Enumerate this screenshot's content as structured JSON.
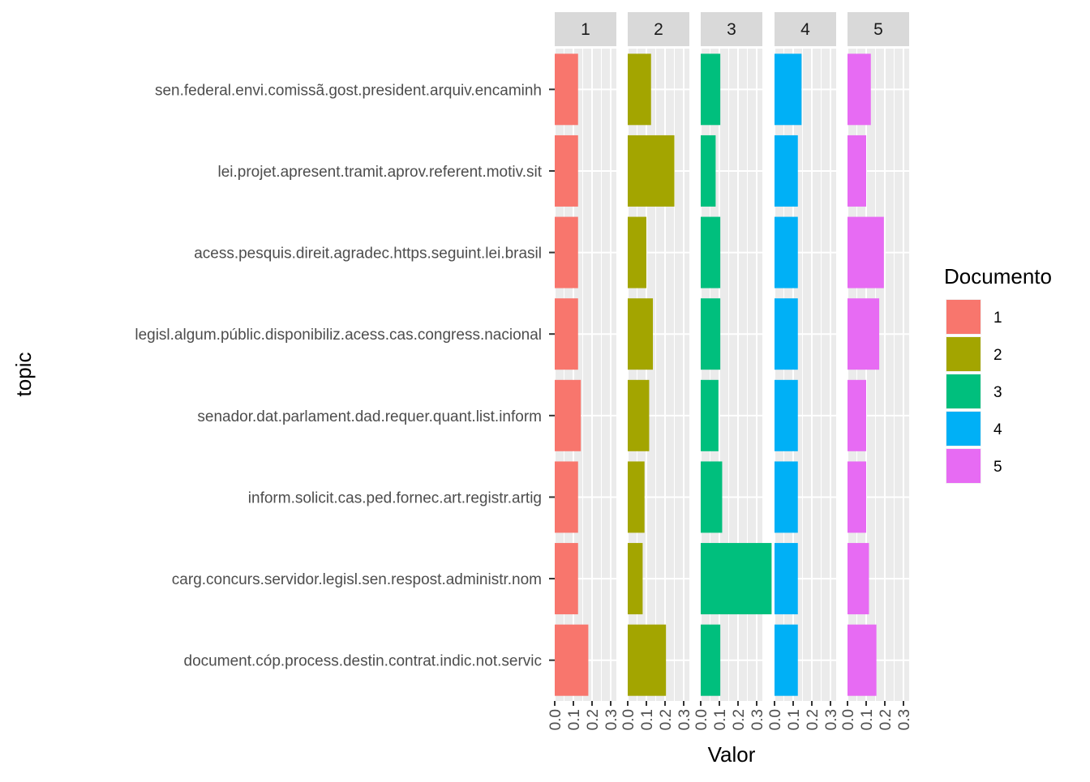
{
  "chart_data": {
    "type": "bar",
    "orientation": "horizontal",
    "faceted": true,
    "facet_labels": [
      "1",
      "2",
      "3",
      "4",
      "5"
    ],
    "categories": [
      "sen.federal.envi.comissã.gost.president.arquiv.encaminh",
      "lei.projet.apresent.tramit.aprov.referent.motiv.sit",
      "acess.pesquis.direit.agradec.https.seguint.lei.brasil",
      "legisl.algum.públic.disponibiliz.acess.cas.congress.nacional",
      "senador.dat.parlament.dad.requer.quant.list.inform",
      "inform.solicit.cas.ped.fornec.art.registr.artig",
      "carg.concurs.servidor.legisl.sen.respost.administr.nom",
      "document.cóp.process.destin.contrat.indic.not.servic"
    ],
    "series": [
      {
        "name": "1",
        "color": "#F8766D",
        "values": [
          0.125,
          0.125,
          0.125,
          0.125,
          0.14,
          0.125,
          0.125,
          0.18
        ]
      },
      {
        "name": "2",
        "color": "#A3A500",
        "values": [
          0.125,
          0.25,
          0.1,
          0.135,
          0.115,
          0.09,
          0.08,
          0.205
        ]
      },
      {
        "name": "3",
        "color": "#00BF7D",
        "values": [
          0.105,
          0.08,
          0.105,
          0.105,
          0.095,
          0.115,
          0.38,
          0.105
        ]
      },
      {
        "name": "4",
        "color": "#00B0F6",
        "values": [
          0.145,
          0.125,
          0.125,
          0.125,
          0.125,
          0.125,
          0.125,
          0.125
        ]
      },
      {
        "name": "5",
        "color": "#E76BF3",
        "values": [
          0.125,
          0.1,
          0.195,
          0.17,
          0.1,
          0.1,
          0.115,
          0.155
        ]
      }
    ],
    "x_ticks": [
      "0.0",
      "0.1",
      "0.2",
      "0.3"
    ],
    "x_tick_values": [
      0.0,
      0.1,
      0.2,
      0.3
    ],
    "xlim": [
      0,
      0.38
    ],
    "xlabel": "Valor",
    "ylabel": "topic",
    "legend": {
      "title": "Documento",
      "position": "right",
      "entries": [
        "1",
        "2",
        "3",
        "4",
        "5"
      ]
    },
    "grid": true
  }
}
